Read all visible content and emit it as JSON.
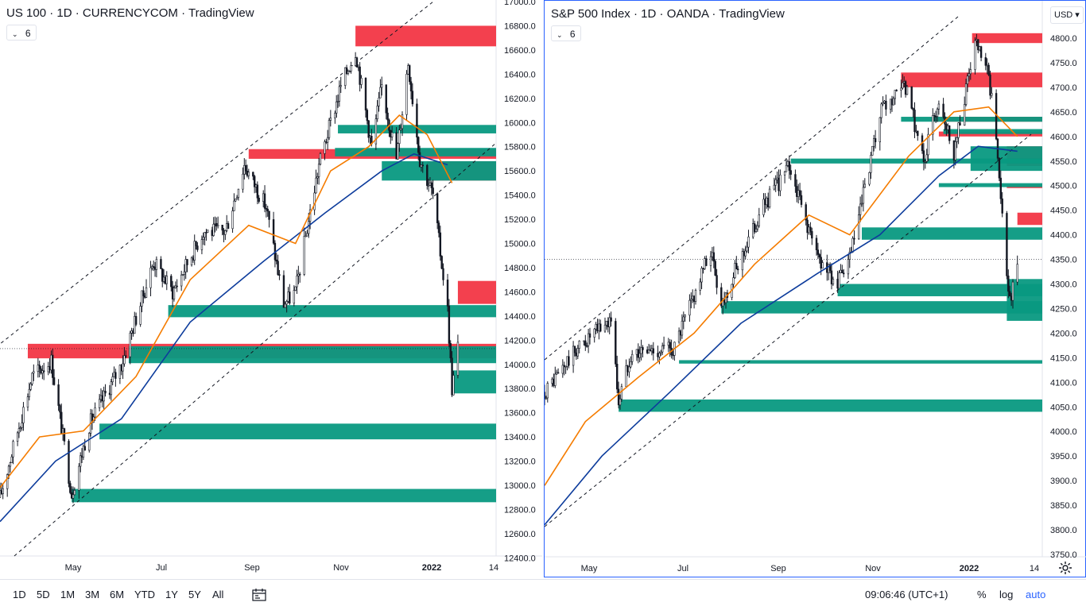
{
  "left_pane": {
    "symbol": "US 100",
    "interval": "1D",
    "source": "CURRENCYCOM",
    "platform": "TradingView",
    "indicator_count": "6"
  },
  "right_pane": {
    "symbol": "S&P 500 Index",
    "interval": "1D",
    "source": "OANDA",
    "platform": "TradingView",
    "indicator_count": "6",
    "currency": "USD"
  },
  "toolbar": {
    "ranges": [
      "1D",
      "5D",
      "1M",
      "3M",
      "6M",
      "YTD",
      "1Y",
      "5Y",
      "All"
    ],
    "clock": "09:06:46 (UTC+1)",
    "percent": "%",
    "log": "log",
    "auto": "auto"
  },
  "colors": {
    "supply_zone": "#f23645",
    "demand_zone": "#089981",
    "ma_fast": "#f57c00",
    "ma_slow": "#0d3c9c",
    "selected_border": "#2962ff"
  },
  "chart_data": [
    {
      "type": "candlestick",
      "title": "US 100 · 1D · CURRENCYCOM · TradingView",
      "x_tick_labels": [
        "May",
        "Jul",
        "Sep",
        "Nov",
        "2022",
        "14"
      ],
      "y_tick_labels": [
        "17000.0",
        "16800.0",
        "16600.0",
        "16400.0",
        "16200.0",
        "16000.0",
        "15800.0",
        "15600.0",
        "15400.0",
        "15200.0",
        "15000.0",
        "14800.0",
        "14600.0",
        "14400.0",
        "14200.0",
        "14000.0",
        "13800.0",
        "13600.0",
        "13400.0",
        "13200.0",
        "13000.0",
        "12800.0",
        "12600.0",
        "12400.0"
      ],
      "ylim": [
        12400,
        17000
      ],
      "last_price": 14130,
      "close_path": [
        {
          "x": "2021-03-24",
          "close": 12900
        },
        {
          "x": "2021-04-15",
          "close": 13900
        },
        {
          "x": "2021-04-28",
          "close": 14030
        },
        {
          "x": "2021-05-12",
          "close": 12930
        },
        {
          "x": "2021-05-24",
          "close": 13500
        },
        {
          "x": "2021-06-15",
          "close": 14000
        },
        {
          "x": "2021-07-07",
          "close": 14850
        },
        {
          "x": "2021-07-20",
          "close": 14600
        },
        {
          "x": "2021-08-10",
          "close": 15100
        },
        {
          "x": "2021-08-25",
          "close": 15100
        },
        {
          "x": "2021-09-07",
          "close": 15650
        },
        {
          "x": "2021-09-22",
          "close": 15300
        },
        {
          "x": "2021-10-04",
          "close": 14500
        },
        {
          "x": "2021-10-12",
          "close": 14600
        },
        {
          "x": "2021-10-28",
          "close": 15650
        },
        {
          "x": "2021-11-12",
          "close": 16300
        },
        {
          "x": "2021-11-22",
          "close": 16600
        },
        {
          "x": "2021-12-03",
          "close": 15800
        },
        {
          "x": "2021-12-10",
          "close": 16300
        },
        {
          "x": "2021-12-20",
          "close": 15700
        },
        {
          "x": "2021-12-28",
          "close": 16500
        },
        {
          "x": "2022-01-05",
          "close": 15700
        },
        {
          "x": "2022-01-14",
          "close": 15400
        },
        {
          "x": "2022-01-24",
          "close": 14450
        },
        {
          "x": "2022-01-27",
          "close": 13800
        },
        {
          "x": "2022-01-31",
          "close": 14150
        }
      ],
      "ma_fast_path": [
        {
          "x": "2021-03-24",
          "value": 12980
        },
        {
          "x": "2021-04-20",
          "value": 13400
        },
        {
          "x": "2021-05-20",
          "value": 13450
        },
        {
          "x": "2021-06-25",
          "value": 13900
        },
        {
          "x": "2021-08-01",
          "value": 14700
        },
        {
          "x": "2021-09-10",
          "value": 15150
        },
        {
          "x": "2021-10-12",
          "value": 15000
        },
        {
          "x": "2021-11-05",
          "value": 15600
        },
        {
          "x": "2021-12-01",
          "value": 15800
        },
        {
          "x": "2021-12-22",
          "value": 16060
        },
        {
          "x": "2022-01-10",
          "value": 15900
        },
        {
          "x": "2022-01-27",
          "value": 15500
        }
      ],
      "ma_slow_path": [
        {
          "x": "2021-03-24",
          "value": 12700
        },
        {
          "x": "2021-05-01",
          "value": 13200
        },
        {
          "x": "2021-06-15",
          "value": 13550
        },
        {
          "x": "2021-08-01",
          "value": 14350
        },
        {
          "x": "2021-09-20",
          "value": 14850
        },
        {
          "x": "2021-11-01",
          "value": 15250
        },
        {
          "x": "2021-12-10",
          "value": 15600
        },
        {
          "x": "2022-01-01",
          "value": 15740
        },
        {
          "x": "2022-01-24",
          "value": 15650
        }
      ],
      "zones": [
        {
          "kind": "supply",
          "from": "2021-11-22",
          "top": 16800,
          "bottom": 16630
        },
        {
          "kind": "supply",
          "from": "2021-09-10",
          "top": 15780,
          "bottom": 15700
        },
        {
          "kind": "supply",
          "from": "2022-01-10",
          "top": 15680,
          "bottom": 15520
        },
        {
          "kind": "supply",
          "from": "2022-01-31",
          "top": 14690,
          "bottom": 14500
        },
        {
          "kind": "supply",
          "from": "2021-04-12",
          "top": 14170,
          "bottom": 14050
        },
        {
          "kind": "demand",
          "from": "2021-11-10",
          "top": 15980,
          "bottom": 15910
        },
        {
          "kind": "demand",
          "from": "2021-11-08",
          "top": 15790,
          "bottom": 15720
        },
        {
          "kind": "demand",
          "from": "2021-12-10",
          "top": 15680,
          "bottom": 15520
        },
        {
          "kind": "demand",
          "from": "2021-07-17",
          "top": 14490,
          "bottom": 14390
        },
        {
          "kind": "demand",
          "from": "2021-06-20",
          "top": 14150,
          "bottom": 14010
        },
        {
          "kind": "demand",
          "from": "2022-01-27",
          "top": 13950,
          "bottom": 13760
        },
        {
          "kind": "demand",
          "from": "2021-05-31",
          "top": 13510,
          "bottom": 13380
        },
        {
          "kind": "demand",
          "from": "2021-05-12",
          "top": 12970,
          "bottom": 12860
        }
      ]
    },
    {
      "type": "candlestick",
      "title": "S&P 500 Index · 1D · OANDA · TradingView",
      "x_tick_labels": [
        "May",
        "Jul",
        "Sep",
        "Nov",
        "2022",
        "14"
      ],
      "y_tick_labels": [
        "4800.0",
        "4750.0",
        "4700.0",
        "4650.0",
        "4600.0",
        "4550.0",
        "4500.0",
        "4450.0",
        "4400.0",
        "4350.0",
        "4300.0",
        "4250.0",
        "4200.0",
        "4150.0",
        "4100.0",
        "4050.0",
        "4000.0",
        "3950.0",
        "3900.0",
        "3850.0",
        "3800.0",
        "3750.0"
      ],
      "ylim": [
        3740,
        4830
      ],
      "last_price": 4350,
      "close_path": [
        {
          "x": "2021-03-24",
          "value": 4080,
          "close": 4080
        },
        {
          "x": "2021-04-15",
          "close": 4170
        },
        {
          "x": "2021-05-07",
          "close": 4230
        },
        {
          "x": "2021-05-12",
          "close": 4060
        },
        {
          "x": "2021-05-20",
          "close": 4160
        },
        {
          "x": "2021-06-18",
          "close": 4170
        },
        {
          "x": "2021-07-12",
          "close": 4370
        },
        {
          "x": "2021-07-19",
          "close": 4260
        },
        {
          "x": "2021-08-16",
          "close": 4460
        },
        {
          "x": "2021-09-02",
          "close": 4540
        },
        {
          "x": "2021-09-20",
          "close": 4360
        },
        {
          "x": "2021-10-04",
          "close": 4300
        },
        {
          "x": "2021-10-12",
          "close": 4350
        },
        {
          "x": "2021-11-02",
          "close": 4650
        },
        {
          "x": "2021-11-18",
          "close": 4700
        },
        {
          "x": "2021-11-30",
          "close": 4550
        },
        {
          "x": "2021-12-10",
          "close": 4680
        },
        {
          "x": "2021-12-20",
          "close": 4570
        },
        {
          "x": "2022-01-03",
          "close": 4790
        },
        {
          "x": "2022-01-12",
          "close": 4720
        },
        {
          "x": "2022-01-18",
          "close": 4570
        },
        {
          "x": "2022-01-24",
          "close": 4300
        },
        {
          "x": "2022-01-27",
          "close": 4270
        },
        {
          "x": "2022-01-31",
          "close": 4350
        }
      ],
      "ma_fast_path": [
        {
          "x": "2021-03-24",
          "value": 3890
        },
        {
          "x": "2021-04-20",
          "value": 4020
        },
        {
          "x": "2021-05-25",
          "value": 4110
        },
        {
          "x": "2021-07-01",
          "value": 4200
        },
        {
          "x": "2021-08-10",
          "value": 4340
        },
        {
          "x": "2021-09-15",
          "value": 4440
        },
        {
          "x": "2021-10-12",
          "value": 4400
        },
        {
          "x": "2021-11-20",
          "value": 4560
        },
        {
          "x": "2021-12-20",
          "value": 4650
        },
        {
          "x": "2022-01-12",
          "value": 4660
        },
        {
          "x": "2022-01-31",
          "value": 4600
        }
      ],
      "ma_slow_path": [
        {
          "x": "2021-03-24",
          "value": 3810
        },
        {
          "x": "2021-05-01",
          "value": 3950
        },
        {
          "x": "2021-06-15",
          "value": 4080
        },
        {
          "x": "2021-08-01",
          "value": 4220
        },
        {
          "x": "2021-09-20",
          "value": 4320
        },
        {
          "x": "2021-11-01",
          "value": 4400
        },
        {
          "x": "2021-12-10",
          "value": 4520
        },
        {
          "x": "2022-01-05",
          "value": 4580
        },
        {
          "x": "2022-01-31",
          "value": 4570
        }
      ],
      "zones": [
        {
          "kind": "supply",
          "from": "2022-01-01",
          "top": 4810,
          "bottom": 4790
        },
        {
          "kind": "supply",
          "from": "2021-11-15",
          "top": 4730,
          "bottom": 4700
        },
        {
          "kind": "supply",
          "from": "2021-12-06",
          "top": 4640,
          "bottom": 4630
        },
        {
          "kind": "supply",
          "from": "2021-12-10",
          "top": 4610,
          "bottom": 4600
        },
        {
          "kind": "supply",
          "from": "2022-01-24",
          "top": 4580,
          "bottom": 4540
        },
        {
          "kind": "supply",
          "from": "2022-01-24",
          "top": 4500,
          "bottom": 4495
        },
        {
          "kind": "supply",
          "from": "2022-01-31",
          "top": 4445,
          "bottom": 4420
        },
        {
          "kind": "demand",
          "from": "2021-11-15",
          "top": 4640,
          "bottom": 4630
        },
        {
          "kind": "demand",
          "from": "2021-12-13",
          "top": 4615,
          "bottom": 4605
        },
        {
          "kind": "demand",
          "from": "2021-12-31",
          "top": 4580,
          "bottom": 4530
        },
        {
          "kind": "demand",
          "from": "2021-09-03",
          "top": 4555,
          "bottom": 4545
        },
        {
          "kind": "demand",
          "from": "2021-12-10",
          "top": 4505,
          "bottom": 4497
        },
        {
          "kind": "demand",
          "from": "2021-10-20",
          "top": 4415,
          "bottom": 4390
        },
        {
          "kind": "demand",
          "from": "2021-10-04",
          "top": 4300,
          "bottom": 4275
        },
        {
          "kind": "demand",
          "from": "2022-01-24",
          "top": 4310,
          "bottom": 4225
        },
        {
          "kind": "demand",
          "from": "2021-07-19",
          "top": 4265,
          "bottom": 4240
        },
        {
          "kind": "demand",
          "from": "2021-06-21",
          "top": 4145,
          "bottom": 4138
        },
        {
          "kind": "demand",
          "from": "2021-05-12",
          "top": 4065,
          "bottom": 4040
        }
      ]
    }
  ]
}
